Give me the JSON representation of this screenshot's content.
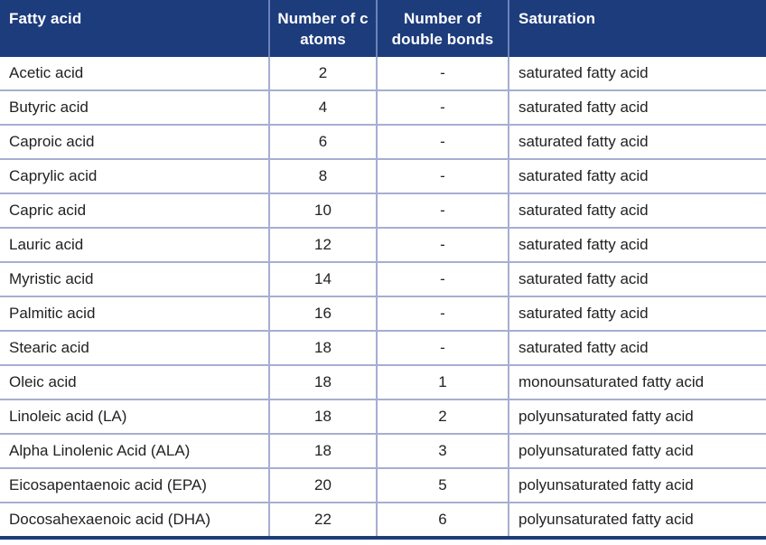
{
  "colors": {
    "header_bg": "#1d3c7c",
    "header_text": "#ffffff",
    "header_divider": "#6d82b8",
    "grid_line": "#a6aed2",
    "body_text": "#222222",
    "row_bg": "#ffffff",
    "bottom_border": "#1d3c7c"
  },
  "chart_data": {
    "type": "table",
    "columns": [
      "Fatty acid",
      "Number of c atoms",
      "Number of double bonds",
      "Saturation"
    ],
    "rows": [
      [
        "Acetic acid",
        "2",
        "-",
        "saturated fatty acid"
      ],
      [
        "Butyric acid",
        "4",
        "-",
        "saturated fatty acid"
      ],
      [
        "Caproic acid",
        "6",
        "-",
        "saturated fatty acid"
      ],
      [
        "Caprylic acid",
        "8",
        "-",
        "saturated fatty acid"
      ],
      [
        "Capric acid",
        "10",
        "-",
        "saturated fatty acid"
      ],
      [
        "Lauric acid",
        "12",
        "-",
        "saturated fatty acid"
      ],
      [
        "Myristic acid",
        "14",
        "-",
        "saturated fatty acid"
      ],
      [
        "Palmitic acid",
        "16",
        "-",
        "saturated fatty acid"
      ],
      [
        "Stearic acid",
        "18",
        "-",
        "saturated fatty acid"
      ],
      [
        "Oleic acid",
        "18",
        "1",
        "monounsaturated fatty acid"
      ],
      [
        "Linoleic acid (LA)",
        "18",
        "2",
        "polyunsaturated fatty acid"
      ],
      [
        "Alpha Linolenic Acid (ALA)",
        "18",
        "3",
        "polyunsaturated fatty acid"
      ],
      [
        "Eicosapentaenoic acid (EPA)",
        "20",
        "5",
        "polyunsaturated fatty acid"
      ],
      [
        "Docosahexaenoic acid (DHA)",
        "22",
        "6",
        "polyunsaturated fatty acid"
      ]
    ]
  }
}
